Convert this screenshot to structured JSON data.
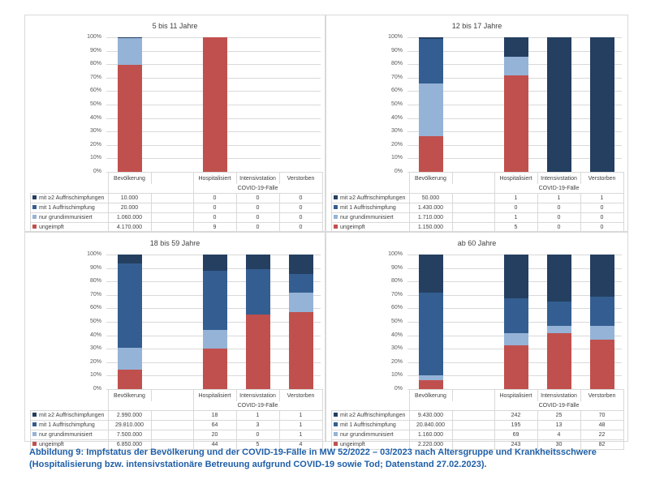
{
  "caption": {
    "line1": "Abbildung 9: Impfstatus der Bevölkerung und der COVID-19-Fälle in MW 52/2022 – 03/2023 nach Altersgruppe und Krankheitsschwere",
    "line2": "(Hospitalisierung bzw. intensivstationäre Betreuung aufgrund COVID-19 sowie Tod; Datenstand 27.02.2023)."
  },
  "colors": {
    "mit_2_auffrisch": "#243f60",
    "mit_1_auffrisch": "#345e91",
    "grundimmunisiert": "#95b3d7",
    "ungeimpft": "#c0504d"
  },
  "chart_data": [
    {
      "type": "bar",
      "stacked": "percent",
      "title": "5 bis 11 Jahre",
      "categories": [
        "Bevölkerung",
        "",
        "Hospitalisiert",
        "Intensivstation",
        "Verstorben"
      ],
      "group_label": "COVID-19-Fälle",
      "yticks": [
        "0%",
        "10%",
        "20%",
        "30%",
        "40%",
        "50%",
        "60%",
        "70%",
        "80%",
        "90%",
        "100%"
      ],
      "ylim": [
        0,
        100
      ],
      "series": [
        {
          "name": "mit ≥2 Auffrischimpfungen",
          "key": "mit_2_auffrisch",
          "values": [
            10000,
            null,
            0,
            0,
            0
          ],
          "labels": [
            "10.000",
            "",
            "0",
            "0",
            "0"
          ]
        },
        {
          "name": "mit 1 Auffrischimpfung",
          "key": "mit_1_auffrisch",
          "values": [
            20000,
            null,
            0,
            0,
            0
          ],
          "labels": [
            "20.000",
            "",
            "0",
            "0",
            "0"
          ]
        },
        {
          "name": "nur grundimmunisiert",
          "key": "grundimmunisiert",
          "values": [
            1060000,
            null,
            0,
            0,
            0
          ],
          "labels": [
            "1.060.000",
            "",
            "0",
            "0",
            "0"
          ]
        },
        {
          "name": "ungeimpft",
          "key": "ungeimpft",
          "values": [
            4170000,
            null,
            9,
            0,
            0
          ],
          "labels": [
            "4.170.000",
            "",
            "9",
            "0",
            "0"
          ]
        }
      ]
    },
    {
      "type": "bar",
      "stacked": "percent",
      "title": "12 bis 17 Jahre",
      "categories": [
        "Bevölkerung",
        "",
        "Hospitalisiert",
        "Intensivstation",
        "Verstorben"
      ],
      "group_label": "COVID-19-Fälle",
      "yticks": [
        "0%",
        "10%",
        "20%",
        "30%",
        "40%",
        "50%",
        "60%",
        "70%",
        "80%",
        "90%",
        "100%"
      ],
      "ylim": [
        0,
        100
      ],
      "series": [
        {
          "name": "mit ≥2 Auffrischimpfungen",
          "key": "mit_2_auffrisch",
          "values": [
            50000,
            null,
            1,
            1,
            1
          ],
          "labels": [
            "50.000",
            "",
            "1",
            "1",
            "1"
          ]
        },
        {
          "name": "mit 1 Auffrischimpfung",
          "key": "mit_1_auffrisch",
          "values": [
            1430000,
            null,
            0,
            0,
            0
          ],
          "labels": [
            "1.430.000",
            "",
            "0",
            "0",
            "0"
          ]
        },
        {
          "name": "nur grundimmunisiert",
          "key": "grundimmunisiert",
          "values": [
            1710000,
            null,
            1,
            0,
            0
          ],
          "labels": [
            "1.710.000",
            "",
            "1",
            "0",
            "0"
          ]
        },
        {
          "name": "ungeimpft",
          "key": "ungeimpft",
          "values": [
            1150000,
            null,
            5,
            0,
            0
          ],
          "labels": [
            "1.150.000",
            "",
            "5",
            "0",
            "0"
          ]
        }
      ]
    },
    {
      "type": "bar",
      "stacked": "percent",
      "title": "18 bis 59 Jahre",
      "categories": [
        "Bevölkerung",
        "",
        "Hospitalisiert",
        "Intensivstation",
        "Verstorben"
      ],
      "group_label": "COVID-19-Fälle",
      "yticks": [
        "0%",
        "10%",
        "20%",
        "30%",
        "40%",
        "50%",
        "60%",
        "70%",
        "80%",
        "90%",
        "100%"
      ],
      "ylim": [
        0,
        100
      ],
      "series": [
        {
          "name": "mit ≥2 Auffrischimpfungen",
          "key": "mit_2_auffrisch",
          "values": [
            2990000,
            null,
            18,
            1,
            1
          ],
          "labels": [
            "2.990.000",
            "",
            "18",
            "1",
            "1"
          ]
        },
        {
          "name": "mit 1 Auffrischimpfung",
          "key": "mit_1_auffrisch",
          "values": [
            29810000,
            null,
            64,
            3,
            1
          ],
          "labels": [
            "29.810.000",
            "",
            "64",
            "3",
            "1"
          ]
        },
        {
          "name": "nur grundimmunisiert",
          "key": "grundimmunisiert",
          "values": [
            7500000,
            null,
            20,
            0,
            1
          ],
          "labels": [
            "7.500.000",
            "",
            "20",
            "0",
            "1"
          ]
        },
        {
          "name": "ungeimpft",
          "key": "ungeimpft",
          "values": [
            6850000,
            null,
            44,
            5,
            4
          ],
          "labels": [
            "6.850.000",
            "",
            "44",
            "5",
            "4"
          ]
        }
      ]
    },
    {
      "type": "bar",
      "stacked": "percent",
      "title": "ab 60 Jahre",
      "categories": [
        "Bevölkerung",
        "",
        "Hospitalisiert",
        "Intensivstation",
        "Verstorben"
      ],
      "group_label": "COVID-19-Fälle",
      "yticks": [
        "0%",
        "10%",
        "20%",
        "30%",
        "40%",
        "50%",
        "60%",
        "70%",
        "80%",
        "90%",
        "100%"
      ],
      "ylim": [
        0,
        100
      ],
      "series": [
        {
          "name": "mit ≥2 Auffrischimpfungen",
          "key": "mit_2_auffrisch",
          "values": [
            9430000,
            null,
            242,
            25,
            70
          ],
          "labels": [
            "9.430.000",
            "",
            "242",
            "25",
            "70"
          ]
        },
        {
          "name": "mit 1 Auffrischimpfung",
          "key": "mit_1_auffrisch",
          "values": [
            20840000,
            null,
            195,
            13,
            48
          ],
          "labels": [
            "20.840.000",
            "",
            "195",
            "13",
            "48"
          ]
        },
        {
          "name": "nur grundimmunisiert",
          "key": "grundimmunisiert",
          "values": [
            1160000,
            null,
            69,
            4,
            22
          ],
          "labels": [
            "1.160.000",
            "",
            "69",
            "4",
            "22"
          ]
        },
        {
          "name": "ungeimpft",
          "key": "ungeimpft",
          "values": [
            2220000,
            null,
            243,
            30,
            82
          ],
          "labels": [
            "2.220.000",
            "",
            "243",
            "30",
            "82"
          ]
        }
      ]
    }
  ]
}
